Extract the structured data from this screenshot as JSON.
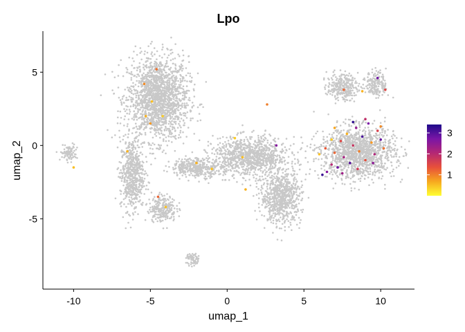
{
  "chart_data": {
    "type": "scatter",
    "title": "Lpo",
    "xlabel": "umap_1",
    "ylabel": "umap_2",
    "xlim": [
      -12.0,
      12.2
    ],
    "ylim": [
      -9.8,
      7.8
    ],
    "x_ticks": [
      -10,
      -5,
      0,
      5,
      10
    ],
    "x_tick_labels": [
      "-10",
      "-5",
      "0",
      "5",
      "10"
    ],
    "y_ticks": [
      -5,
      0,
      5
    ],
    "y_tick_labels": [
      "-5",
      "0",
      "5"
    ],
    "grid": false,
    "legend": {
      "placement": "right",
      "colorbar_min": 0,
      "colorbar_max": 3.4,
      "ticks": [
        1,
        2,
        3
      ],
      "tick_labels": [
        "1",
        "2",
        "3"
      ],
      "colors": [
        "#FFFF33",
        "#F6A81F",
        "#E8503A",
        "#B42774",
        "#7A15A6",
        "#1F0B8A"
      ]
    },
    "background_color": "#C8C8C8",
    "clusters": [
      {
        "name": "left-upper",
        "cx": -4.5,
        "cy": 3.2,
        "rx": 1.8,
        "ry": 2.6
      },
      {
        "name": "left-lower-strand",
        "cx": -6.2,
        "cy": -2.0,
        "rx": 0.7,
        "ry": 2.2
      },
      {
        "name": "bottom-left",
        "cx": -4.2,
        "cy": -4.3,
        "rx": 0.8,
        "ry": 0.8
      },
      {
        "name": "center",
        "cx": 1.5,
        "cy": -0.8,
        "rx": 2.2,
        "ry": 1.2
      },
      {
        "name": "center-left",
        "cx": -2.0,
        "cy": -1.5,
        "rx": 1.5,
        "ry": 0.6
      },
      {
        "name": "bottom-middle",
        "cx": 3.5,
        "cy": -3.5,
        "rx": 1.2,
        "ry": 1.6
      },
      {
        "name": "right-big",
        "cx": 8.5,
        "cy": -0.5,
        "rx": 2.2,
        "ry": 1.6
      },
      {
        "name": "top-right-left",
        "cx": 7.5,
        "cy": 4.0,
        "rx": 0.9,
        "ry": 0.8
      },
      {
        "name": "top-right-right",
        "cx": 9.7,
        "cy": 4.2,
        "rx": 0.6,
        "ry": 0.8
      },
      {
        "name": "small-left",
        "cx": -10.3,
        "cy": -0.5,
        "rx": 0.5,
        "ry": 0.5
      },
      {
        "name": "bottom-tail",
        "cx": -2.2,
        "cy": -7.8,
        "rx": 0.4,
        "ry": 0.4
      }
    ],
    "expressing_cells": [
      {
        "x": 6.2,
        "y": -2.0,
        "value": 3.2
      },
      {
        "x": 6.5,
        "y": -1.8,
        "value": 2.6
      },
      {
        "x": 6.8,
        "y": -1.3,
        "value": 2.0
      },
      {
        "x": 7.0,
        "y": -0.5,
        "value": 1.2
      },
      {
        "x": 7.2,
        "y": -1.5,
        "value": 2.8
      },
      {
        "x": 7.4,
        "y": 0.3,
        "value": 1.5
      },
      {
        "x": 7.6,
        "y": -0.8,
        "value": 2.2
      },
      {
        "x": 7.8,
        "y": 0.8,
        "value": 0.6
      },
      {
        "x": 8.0,
        "y": -1.2,
        "value": 3.0
      },
      {
        "x": 8.2,
        "y": 0.0,
        "value": 1.8
      },
      {
        "x": 8.4,
        "y": 1.2,
        "value": 2.4
      },
      {
        "x": 8.6,
        "y": -0.4,
        "value": 1.0
      },
      {
        "x": 8.8,
        "y": 0.6,
        "value": 3.1
      },
      {
        "x": 9.0,
        "y": -1.0,
        "value": 1.4
      },
      {
        "x": 9.2,
        "y": 1.5,
        "value": 2.7
      },
      {
        "x": 9.4,
        "y": 0.2,
        "value": 0.8
      },
      {
        "x": 9.6,
        "y": -0.6,
        "value": 2.1
      },
      {
        "x": 9.8,
        "y": 1.0,
        "value": 1.6
      },
      {
        "x": 10.0,
        "y": 0.4,
        "value": 2.9
      },
      {
        "x": 10.2,
        "y": -0.2,
        "value": 1.1
      },
      {
        "x": 6.0,
        "y": -0.6,
        "value": 0.5
      },
      {
        "x": 6.4,
        "y": -0.2,
        "value": 1.3
      },
      {
        "x": 7.0,
        "y": 1.2,
        "value": 0.7
      },
      {
        "x": 8.2,
        "y": 1.6,
        "value": 3.3
      },
      {
        "x": 9.0,
        "y": 1.8,
        "value": 1.9
      },
      {
        "x": 10.0,
        "y": 1.3,
        "value": 0.9
      },
      {
        "x": 7.5,
        "y": -1.9,
        "value": 2.3
      },
      {
        "x": 8.5,
        "y": -1.6,
        "value": 1.7
      },
      {
        "x": 9.5,
        "y": -1.2,
        "value": 2.5
      },
      {
        "x": 6.8,
        "y": 0.4,
        "value": 0.4
      },
      {
        "x": 9.8,
        "y": 4.6,
        "value": 2.8
      },
      {
        "x": 10.3,
        "y": 3.8,
        "value": 1.5
      },
      {
        "x": 8.8,
        "y": 3.7,
        "value": 0.6
      },
      {
        "x": 7.6,
        "y": 3.8,
        "value": 1.2
      },
      {
        "x": 2.6,
        "y": 2.8,
        "value": 1.0
      },
      {
        "x": 3.2,
        "y": 0.0,
        "value": 2.6
      },
      {
        "x": -4.6,
        "y": 5.2,
        "value": 1.1
      },
      {
        "x": -4.9,
        "y": 3.0,
        "value": 0.5
      },
      {
        "x": -5.3,
        "y": 2.0,
        "value": 0.6
      },
      {
        "x": -5.0,
        "y": 1.5,
        "value": 0.8
      },
      {
        "x": -4.2,
        "y": 2.0,
        "value": 0.4
      },
      {
        "x": -5.4,
        "y": 4.2,
        "value": 0.9
      },
      {
        "x": -6.5,
        "y": -0.4,
        "value": 0.6
      },
      {
        "x": -10.0,
        "y": -1.5,
        "value": 0.5
      },
      {
        "x": -4.5,
        "y": -3.5,
        "value": 1.2
      },
      {
        "x": -4.0,
        "y": -4.2,
        "value": 0.5
      },
      {
        "x": -2.0,
        "y": -1.2,
        "value": 0.6
      },
      {
        "x": -1.0,
        "y": -1.6,
        "value": 0.5
      },
      {
        "x": 0.5,
        "y": 0.5,
        "value": 0.4
      },
      {
        "x": 1.2,
        "y": -3.0,
        "value": 0.6
      },
      {
        "x": 1.0,
        "y": -0.8,
        "value": 0.5
      }
    ]
  }
}
